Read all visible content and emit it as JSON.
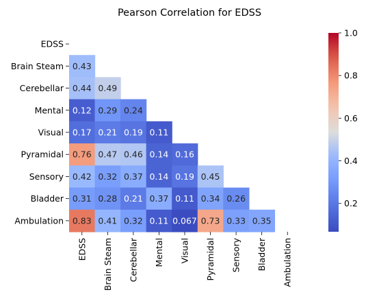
{
  "chart_data": {
    "type": "heatmap",
    "title": "Pearson Correlation for EDSS",
    "variables": [
      "EDSS",
      "Brain Steam",
      "Cerebellar",
      "Mental",
      "Visual",
      "Pyramidal",
      "Sensory",
      "Bladder",
      "Ambulation"
    ],
    "mask": "upper-triangle-including-diagonal",
    "matrix": [
      [
        null,
        null,
        null,
        null,
        null,
        null,
        null,
        null,
        null
      ],
      [
        0.43,
        null,
        null,
        null,
        null,
        null,
        null,
        null,
        null
      ],
      [
        0.44,
        0.49,
        null,
        null,
        null,
        null,
        null,
        null,
        null
      ],
      [
        0.12,
        0.29,
        0.24,
        null,
        null,
        null,
        null,
        null,
        null
      ],
      [
        0.17,
        0.21,
        0.19,
        0.11,
        null,
        null,
        null,
        null,
        null
      ],
      [
        0.76,
        0.47,
        0.46,
        0.14,
        0.16,
        null,
        null,
        null,
        null
      ],
      [
        0.42,
        0.32,
        0.37,
        0.14,
        0.19,
        0.45,
        null,
        null,
        null
      ],
      [
        0.31,
        0.28,
        0.21,
        0.37,
        0.11,
        0.34,
        0.26,
        null,
        null
      ],
      [
        0.83,
        0.41,
        0.32,
        0.11,
        0.067,
        0.73,
        0.33,
        0.35,
        null
      ]
    ],
    "labels": [
      [
        null,
        null,
        null,
        null,
        null,
        null,
        null,
        null,
        null
      ],
      [
        "0.43",
        null,
        null,
        null,
        null,
        null,
        null,
        null,
        null
      ],
      [
        "0.44",
        "0.49",
        null,
        null,
        null,
        null,
        null,
        null,
        null
      ],
      [
        "0.12",
        "0.29",
        "0.24",
        null,
        null,
        null,
        null,
        null,
        null
      ],
      [
        "0.17",
        "0.21",
        "0.19",
        "0.11",
        null,
        null,
        null,
        null,
        null
      ],
      [
        "0.76",
        "0.47",
        "0.46",
        "0.14",
        "0.16",
        null,
        null,
        null,
        null
      ],
      [
        "0.42",
        "0.32",
        "0.37",
        "0.14",
        "0.19",
        "0.45",
        null,
        null,
        null
      ],
      [
        "0.31",
        "0.28",
        "0.21",
        "0.37",
        "0.11",
        "0.34",
        "0.26",
        null,
        null
      ],
      [
        "0.83",
        "0.41",
        "0.32",
        "0.11",
        "0.067",
        "0.73",
        "0.33",
        "0.35",
        null
      ]
    ],
    "colormap": "coolwarm",
    "colorbar": {
      "min": 0.067,
      "max": 1.0,
      "ticks": [
        0.2,
        0.4,
        0.6,
        0.8,
        1.0
      ],
      "tick_labels": [
        "0.2",
        "0.4",
        "0.6",
        "0.8",
        "1.0"
      ]
    },
    "grid": false
  }
}
